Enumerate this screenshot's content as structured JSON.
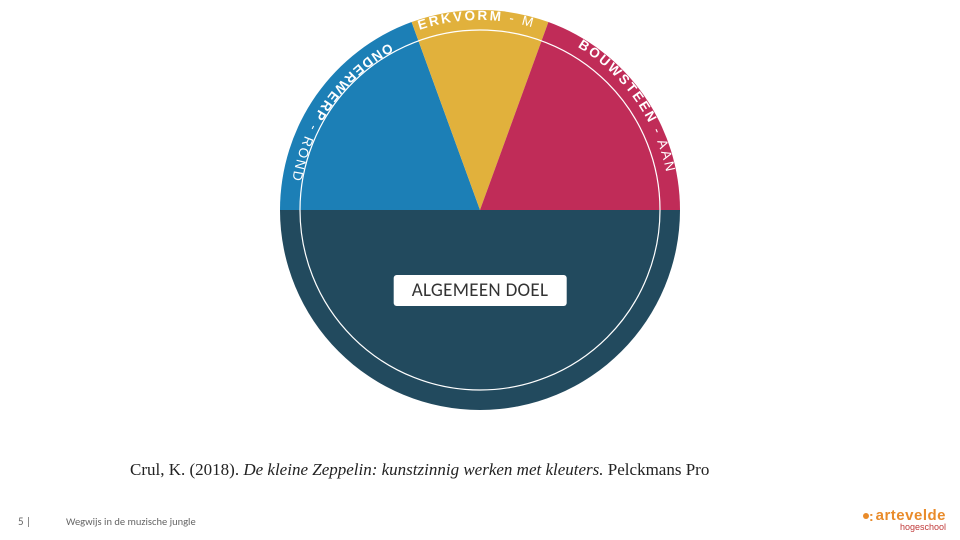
{
  "chart": {
    "type": "pie",
    "outer_radius": 200,
    "inner_circle_radius": 180,
    "inner_circle_stroke": "#ffffff",
    "inner_circle_stroke_width": 1.2,
    "background_color": "#ffffff",
    "slices": [
      {
        "label_prefix": "ONDERWERP",
        "label_suffix": "ROND",
        "start_deg": 180,
        "end_deg": 250,
        "color": "#1c7fb6"
      },
      {
        "label_prefix": "WERKVORM",
        "label_suffix": "MET",
        "start_deg": 250,
        "end_deg": 290,
        "color": "#e1b13c"
      },
      {
        "label_prefix": "BOUWSTEEN",
        "label_suffix": "AAN",
        "start_deg": 290,
        "end_deg": 360,
        "color": "#c02c58"
      },
      {
        "label_prefix": "",
        "label_suffix": "",
        "start_deg": 0,
        "end_deg": 180,
        "color": "#224a5e"
      }
    ],
    "label_radius": 190,
    "label_fontsize": 13.5,
    "label_letter_spacing": 2.2,
    "label_color": "#ffffff",
    "label_weight": "700",
    "center_label": "ALGEMEEN DOEL",
    "center_label_fontsize": 19,
    "center_label_bg": "#ffffff",
    "center_label_color": "#333333"
  },
  "citation": {
    "author_year": "Crul, K. (2018). ",
    "title_italic": "De kleine Zeppelin: kunstzinnig werken met kleuters.",
    "publisher": " Pelckmans Pro",
    "fontsize": 17,
    "color": "#222222"
  },
  "footer": {
    "page": "5 |",
    "title": "Wegwijs in de muzische jungle",
    "fontsize": 10.5,
    "color": "#666666"
  },
  "logo": {
    "brand": "artevelde",
    "sub": "hogeschool",
    "accent_color": "#e98b2a",
    "sub_color": "#c13b3b"
  }
}
